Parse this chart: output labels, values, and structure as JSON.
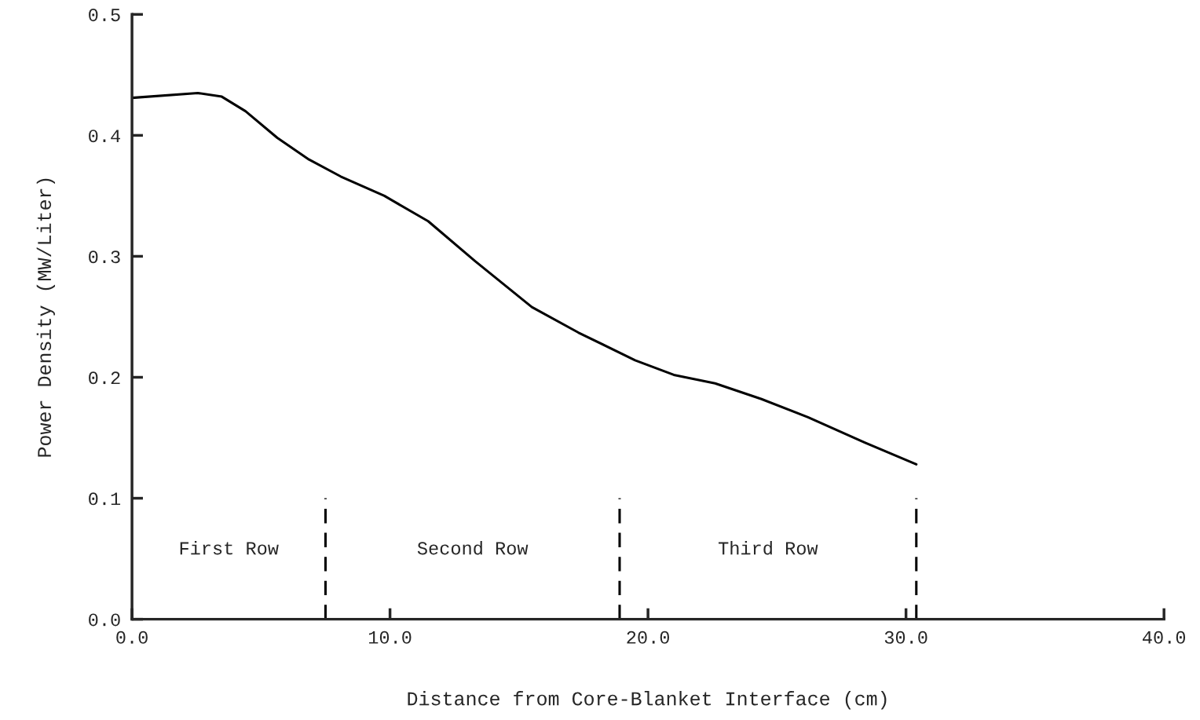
{
  "chart_data": {
    "type": "line",
    "xlabel": "Distance from Core-Blanket Interface (cm)",
    "ylabel": "Power Density (MW/Liter)",
    "xlim": [
      0,
      40
    ],
    "ylim": [
      0,
      0.5
    ],
    "xticks": [
      {
        "value": 0,
        "label": "0.0"
      },
      {
        "value": 10,
        "label": "10.0"
      },
      {
        "value": 20,
        "label": "20.0"
      },
      {
        "value": 30,
        "label": "30.0"
      },
      {
        "value": 40,
        "label": "40.0"
      }
    ],
    "yticks": [
      {
        "value": 0,
        "label": "0.0"
      },
      {
        "value": 0.1,
        "label": "0.1"
      },
      {
        "value": 0.2,
        "label": "0.2"
      },
      {
        "value": 0.3,
        "label": "0.3"
      },
      {
        "value": 0.4,
        "label": "0.4"
      },
      {
        "value": 0.5,
        "label": "0.5"
      }
    ],
    "grid": false,
    "legend": false,
    "marker": "none",
    "series": [
      {
        "color": "#000000",
        "line_style": "solid",
        "x": [
          0,
          2.55,
          3.48,
          4.4,
          5.63,
          6.86,
          8.09,
          9.78,
          11.48,
          13.3,
          15.5,
          17.3,
          19.5,
          21.0,
          22.6,
          24.4,
          26.2,
          28.4,
          30.4
        ],
        "values": [
          0.431,
          0.435,
          0.432,
          0.42,
          0.398,
          0.38,
          0.366,
          0.35,
          0.329,
          0.296,
          0.258,
          0.237,
          0.214,
          0.202,
          0.195,
          0.182,
          0.167,
          0.146,
          0.128
        ]
      },
      {
        "color": "#000000",
        "line_style": "dashed",
        "x": [
          7.5,
          7.5
        ],
        "values": [
          0,
          0.1
        ]
      },
      {
        "color": "#000000",
        "line_style": "dashed",
        "x": [
          18.9,
          18.9
        ],
        "values": [
          0,
          0.1
        ]
      },
      {
        "color": "#000000",
        "line_style": "dashed",
        "x": [
          30.4,
          30.4
        ],
        "values": [
          0,
          0.1
        ]
      }
    ],
    "annotations": [
      "First Row",
      "Second Row",
      "Third Row"
    ]
  }
}
